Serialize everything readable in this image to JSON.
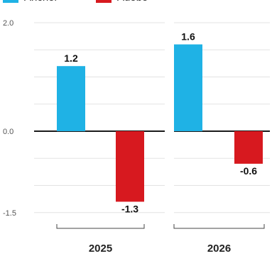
{
  "chart_data": {
    "type": "bar",
    "title": "",
    "xlabel": "",
    "ylabel": "",
    "categories": [
      "2025",
      "2026"
    ],
    "series": [
      {
        "name": "Anchor",
        "values": [
          1.2,
          1.6
        ],
        "color": "#1fb2e5"
      },
      {
        "name": "Adobo",
        "values": [
          -1.3,
          -0.6
        ],
        "color": "#d7191f"
      }
    ],
    "data_labels": [
      [
        "1.2",
        "-1.3"
      ],
      [
        "1.6",
        "-0.6"
      ]
    ],
    "yticks": [
      {
        "value": 2.0,
        "label": "2.0"
      },
      {
        "value": 0.0,
        "label": "0.0"
      },
      {
        "value": -1.5,
        "label": "-1.5"
      }
    ],
    "ylim": [
      -1.5,
      2.0
    ],
    "grid": true,
    "legend": "top-left"
  }
}
